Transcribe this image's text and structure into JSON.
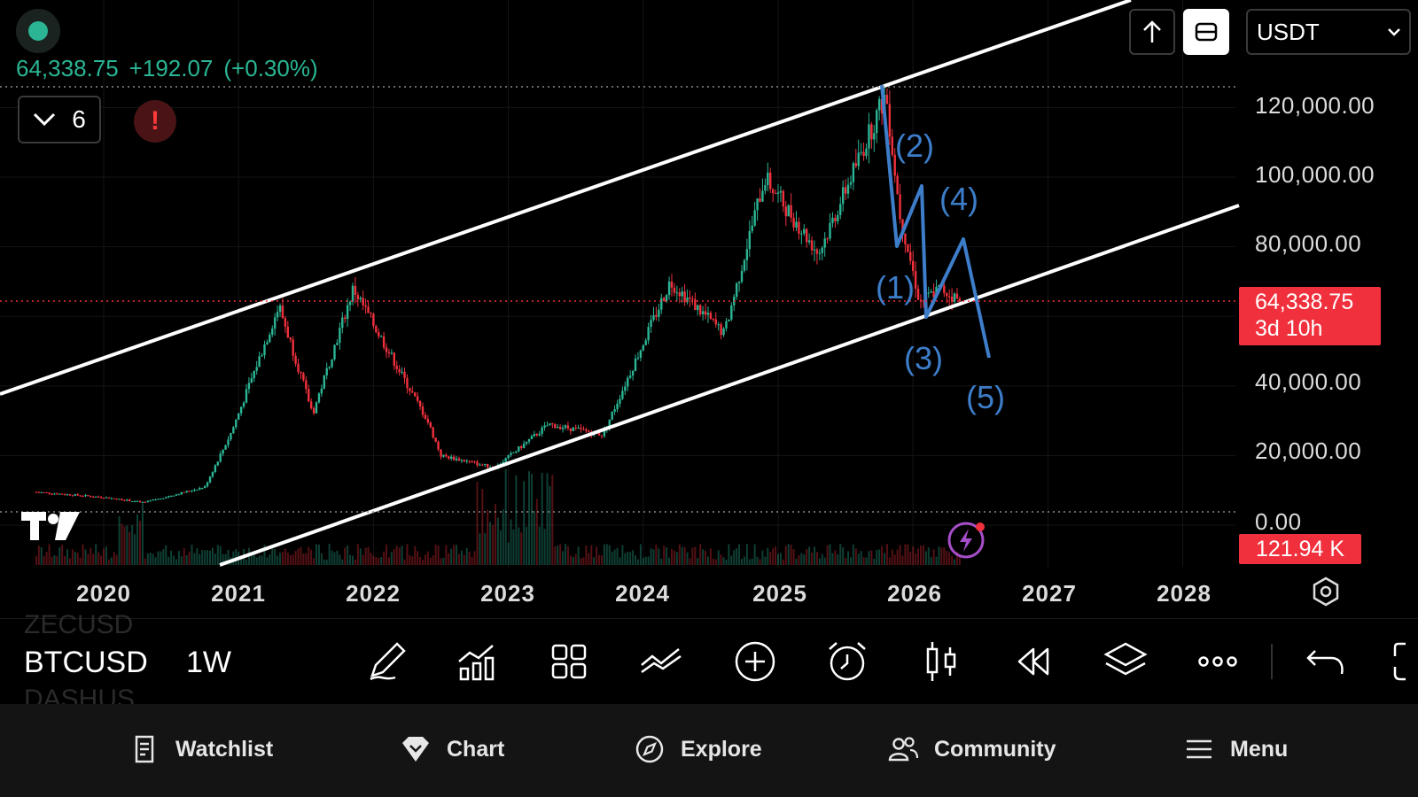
{
  "header": {
    "price": "64,338.75",
    "change": "+192.07",
    "change_pct": "(+0.30%)",
    "indicator_count": "6",
    "alert_glyph": "!",
    "currency": "USDT"
  },
  "colors": {
    "up": "#2bb594",
    "down": "#f0313d",
    "wave": "#3d7dc9",
    "channel": "#ffffff"
  },
  "chart_data": {
    "type": "candlestick",
    "symbol": "BTCUSD",
    "interval": "1W",
    "y_axis_ticks": [
      "120,000.00",
      "100,000.00",
      "80,000.00",
      "40,000.00",
      "20,000.00",
      "0.00"
    ],
    "x_axis_ticks": [
      "2020",
      "2021",
      "2022",
      "2023",
      "2024",
      "2025",
      "2026",
      "2027",
      "2028"
    ],
    "current_price": "64,338.75",
    "countdown": "3d 10h",
    "volume": "121.94 K",
    "price_series_approx": [
      {
        "date": "2019.5",
        "price": 9500
      },
      {
        "date": "2020.0",
        "price": 8000
      },
      {
        "date": "2020.3",
        "price": 6500
      },
      {
        "date": "2020.75",
        "price": 11000
      },
      {
        "date": "2020.95",
        "price": 27000
      },
      {
        "date": "2021.3",
        "price": 63000
      },
      {
        "date": "2021.55",
        "price": 32000
      },
      {
        "date": "2021.85",
        "price": 68000
      },
      {
        "date": "2022.4",
        "price": 30000
      },
      {
        "date": "2022.5",
        "price": 20000
      },
      {
        "date": "2022.9",
        "price": 16500
      },
      {
        "date": "2023.3",
        "price": 29000
      },
      {
        "date": "2023.7",
        "price": 26000
      },
      {
        "date": "2024.2",
        "price": 70000
      },
      {
        "date": "2024.6",
        "price": 55000
      },
      {
        "date": "2024.9",
        "price": 100000
      },
      {
        "date": "2025.3",
        "price": 78000
      },
      {
        "date": "2025.8",
        "price": 124000
      },
      {
        "date": "2025.9",
        "price": 90000
      },
      {
        "date": "2026.05",
        "price": 64000
      },
      {
        "date": "2026.2",
        "price": 68000
      },
      {
        "date": "2026.35",
        "price": 64338.75
      }
    ],
    "wave_labels": [
      "(1)",
      "(2)",
      "(3)",
      "(4)",
      "(5)"
    ]
  },
  "toolbar": {
    "symbol": "BTCUSD",
    "interval": "1W",
    "ghost_top": "ZECUSD",
    "ghost_bottom": "DASHUS",
    "tools": [
      "draw-icon",
      "indicators-icon",
      "templates-icon",
      "compare-icon",
      "add-icon",
      "alert-clock-icon",
      "candle-type-icon",
      "replay-icon",
      "layers-icon",
      "more-icon",
      "undo-icon",
      "fullscreen-icon"
    ]
  },
  "nav": {
    "watchlist": "Watchlist",
    "chart": "Chart",
    "explore": "Explore",
    "community": "Community",
    "menu": "Menu"
  }
}
